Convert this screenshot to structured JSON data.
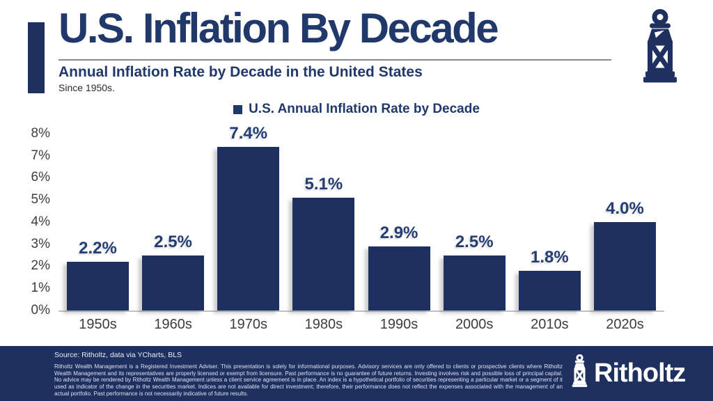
{
  "header": {
    "title": "U.S. Inflation By Decade",
    "subtitle": "Annual Inflation Rate by Decade in the United States",
    "tagline": "Since 1950s."
  },
  "legend": {
    "label": "U.S. Annual Inflation Rate by Decade"
  },
  "chart_data": {
    "type": "bar",
    "title": "U.S. Annual Inflation Rate by Decade",
    "categories": [
      "1950s",
      "1960s",
      "1970s",
      "1980s",
      "1990s",
      "2000s",
      "2010s",
      "2020s"
    ],
    "values": [
      2.2,
      2.5,
      7.4,
      5.1,
      2.9,
      2.5,
      1.8,
      4.0
    ],
    "value_labels": [
      "2.2%",
      "2.5%",
      "7.4%",
      "5.1%",
      "2.9%",
      "2.5%",
      "1.8%",
      "4.0%"
    ],
    "xlabel": "",
    "ylabel": "",
    "ylim": [
      0,
      8
    ],
    "ytick_labels": [
      "0%",
      "1%",
      "2%",
      "3%",
      "4%",
      "5%",
      "6%",
      "7%",
      "8%"
    ],
    "grid": false,
    "legend_position": "top-center",
    "bar_color": "#1e3060"
  },
  "footer": {
    "source": "Source: Ritholtz, data via YCharts, BLS",
    "disclaimer": "Ritholtz Wealth Management is a Registered Investment Adviser. This presentation is solely for informational purposes. Advisory services are only offered to clients or prospective clients where Ritholtz Wealth Management and its representatives are properly licensed or exempt from licensure. Past performance is no guarantee of future returns. Investing involves risk and possible loss of principal capital. No advice may be rendered by Ritholtz Wealth Management unless a client service agreement is in place. An index is a hypothetical portfolio of securities representing a particular market or a segment of it used as indicator of the change in the securities market. Indices are not available for direct investment; therefore, their performance does not reflect the expenses associated with the management of an actual portfolio. Past performance is not necessarily indicative of future results.",
    "brand": "Ritholtz"
  },
  "icons": {
    "header_icon": "lantern-icon",
    "footer_logo_icon": "lantern-icon"
  },
  "colors": {
    "navy": "#1e3060",
    "title_navy": "#21386b",
    "value_label_navy": "#243d72",
    "axis_text": "#3d3d3d",
    "footer_text": "#ffffff"
  }
}
